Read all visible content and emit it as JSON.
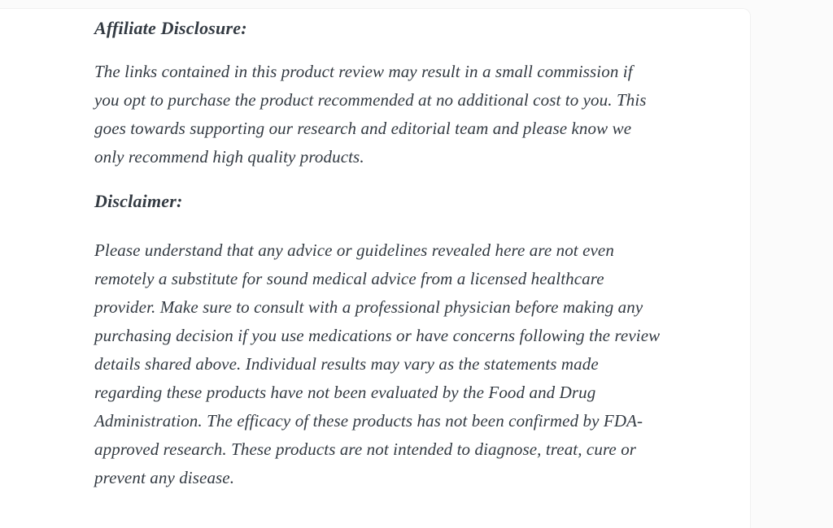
{
  "page": {
    "background_color": "#fbfbfb",
    "card_background_color": "#ffffff",
    "card_border_color": "#f1f1f1",
    "text_color": "#333a42"
  },
  "content": {
    "affiliate": {
      "heading": "Affiliate Disclosure:",
      "body": "The links contained in this product review may result in a small commission if\nyou opt to purchase the product recommended at no additional cost to you. This\ngoes towards supporting our research and editorial team and please know we\nonly recommend high quality products."
    },
    "disclaimer": {
      "heading": "Disclaimer:",
      "body": "Please understand that any advice or guidelines revealed here are not even\nremotely a substitute for sound medical advice from a licensed healthcare\nprovider. Make sure to consult with a professional physician before making any\npurchasing decision if you use medications or have concerns following the review\ndetails shared above. Individual results may vary as the statements made\nregarding these products have not been evaluated by the Food and Drug\nAdministration. The efficacy of these products has not been confirmed by FDA-\napproved research. These products are not intended to diagnose, treat, cure or\nprevent any disease."
    }
  }
}
